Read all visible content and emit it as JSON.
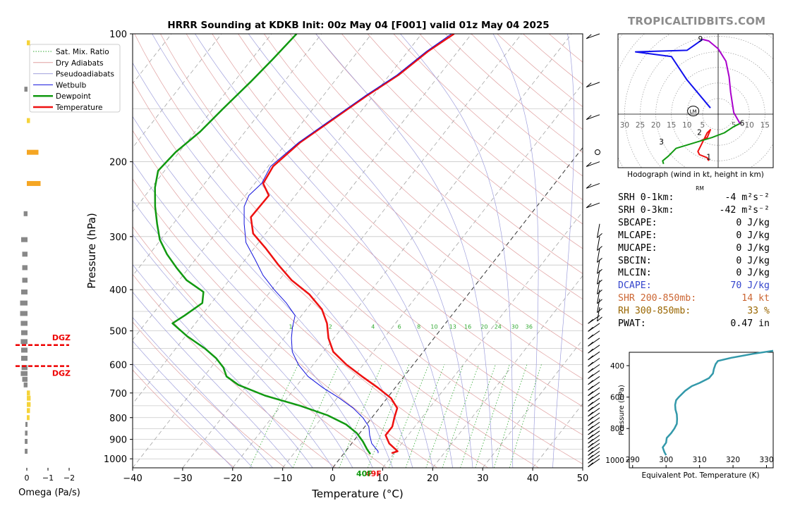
{
  "title": "HRRR Sounding at KDKB Init: 00z May 04 [F001] valid 01z May 04 2025",
  "brand": "TROPICALTIDBITS.COM",
  "skewt": {
    "xlabel": "Temperature (°C)",
    "ylabel": "Pressure (hPa)",
    "xticks": [
      -40,
      -30,
      -20,
      -10,
      0,
      10,
      20,
      30,
      40,
      50
    ],
    "yticks": [
      100,
      200,
      300,
      400,
      500,
      600,
      700,
      800,
      900,
      1000
    ],
    "xlim": [
      -40,
      50
    ],
    "ylim": [
      1050,
      100
    ],
    "mix_ratio_labels": [
      "1",
      "2",
      "4",
      "6",
      "8",
      "10",
      "13",
      "16",
      "20",
      "24",
      "30",
      "36"
    ],
    "legend": [
      "Sat. Mix. Ratio",
      "Dry Adiabats",
      "Pseudoadiabats",
      "Wetbulb",
      "Dewpoint",
      "Temperature"
    ],
    "surface_dewpoint_label": "40F",
    "surface_temp_label": "49F"
  },
  "omega": {
    "xlabel": "Omega (Pa/s)",
    "xticks": [
      "0",
      "−1",
      "−2"
    ],
    "dgz_label": "DGZ"
  },
  "hodograph": {
    "xlabel": "Hodograph (wind in kt, height in km)",
    "ring_labels": [
      "30",
      "25",
      "20",
      "15",
      "10",
      "5",
      "5",
      "10",
      "15"
    ],
    "height_labels": [
      "9",
      "6",
      "3",
      "2",
      "1"
    ],
    "lm_label": "LM",
    "rm_label": "RM"
  },
  "theta_e": {
    "xlabel": "Equivalent Pot. Temperature (K)",
    "ylabel": "Pressure (hPa)",
    "xticks": [
      "290",
      "300",
      "310",
      "320",
      "330"
    ],
    "yticks": [
      "400",
      "600",
      "800",
      "1000"
    ]
  },
  "stats": [
    {
      "label": "SRH 0-1km:",
      "value": "-4 m²s⁻²",
      "color": "#000000"
    },
    {
      "label": "SRH 0-3km:",
      "value": "-42 m²s⁻²",
      "color": "#000000"
    },
    {
      "label": "SBCAPE:",
      "value": "0 J/kg",
      "color": "#000000"
    },
    {
      "label": "MLCAPE:",
      "value": "0 J/kg",
      "color": "#000000"
    },
    {
      "label": "MUCAPE:",
      "value": "0 J/kg",
      "color": "#000000"
    },
    {
      "label": "SBCIN:",
      "value": "0 J/kg",
      "color": "#000000"
    },
    {
      "label": "MLCIN:",
      "value": "0 J/kg",
      "color": "#000000"
    },
    {
      "label": "DCAPE:",
      "value": "70 J/kg",
      "color": "#3344cc"
    },
    {
      "label": "SHR 200-850mb:",
      "value": "14 kt",
      "color": "#cc6633"
    },
    {
      "label": "RH 300-850mb:",
      "value": "33 %",
      "color": "#996600"
    },
    {
      "label": "PWAT:",
      "value": "0.47 in",
      "color": "#000000"
    }
  ],
  "chart_data": [
    {
      "type": "line",
      "title": "HRRR Sounding at KDKB Init: 00z May 04 [F001] valid 01z May 04 2025",
      "xlabel": "Temperature (°C)",
      "ylabel": "Pressure (hPa)",
      "xlim": [
        -40,
        50
      ],
      "ylim": [
        1050,
        100
      ],
      "y_scale": "log",
      "skew": "skew-T log-p",
      "grid": true,
      "legend_position": "top-left",
      "series": [
        {
          "name": "Temperature",
          "color": "#ee1111",
          "points": [
            [
              9.5,
              970
            ],
            [
              10.4,
              960
            ],
            [
              7.5,
              920
            ],
            [
              5.5,
              880
            ],
            [
              5.5,
              840
            ],
            [
              4.5,
              800
            ],
            [
              3.6,
              760
            ],
            [
              0.8,
              720
            ],
            [
              -3.5,
              680
            ],
            [
              -8.4,
              640
            ],
            [
              -13.4,
              600
            ],
            [
              -18,
              560
            ],
            [
              -21.1,
              520
            ],
            [
              -23.7,
              480
            ],
            [
              -26.9,
              445
            ],
            [
              -31.8,
              410
            ],
            [
              -37.5,
              380
            ],
            [
              -42.5,
              350
            ],
            [
              -47.6,
              320
            ],
            [
              -52.5,
              295
            ],
            [
              -55.5,
              270
            ],
            [
              -55.3,
              240
            ],
            [
              -58.3,
              225
            ],
            [
              -59,
              205
            ],
            [
              -57.3,
              180
            ],
            [
              -54.5,
              160
            ],
            [
              -51.3,
              140
            ],
            [
              -48.2,
              125
            ],
            [
              -46,
              110
            ],
            [
              -43.5,
              100
            ]
          ]
        },
        {
          "name": "Wetbulb",
          "color": "#1111dd",
          "points": [
            [
              6.8,
              970
            ],
            [
              6.5,
              960
            ],
            [
              4,
              920
            ],
            [
              2.3,
              880
            ],
            [
              0.8,
              840
            ],
            [
              -1.8,
              800
            ],
            [
              -5.2,
              760
            ],
            [
              -9.5,
              720
            ],
            [
              -14.5,
              680
            ],
            [
              -19.2,
              640
            ],
            [
              -23,
              600
            ],
            [
              -26.2,
              560
            ],
            [
              -28.5,
              520
            ],
            [
              -30,
              490
            ],
            [
              -31.3,
              460
            ],
            [
              -35,
              430
            ],
            [
              -39.5,
              400
            ],
            [
              -44,
              370
            ],
            [
              -48,
              340
            ],
            [
              -52.5,
              310
            ],
            [
              -55.8,
              280
            ],
            [
              -58.5,
              255
            ],
            [
              -59.3,
              240
            ],
            [
              -58.6,
              225
            ],
            [
              -59.5,
              205
            ],
            [
              -57.6,
              180
            ],
            [
              -54.8,
              160
            ],
            [
              -51.6,
              140
            ],
            [
              -48.5,
              125
            ],
            [
              -46.3,
              110
            ],
            [
              -44,
              100
            ]
          ]
        },
        {
          "name": "Dewpoint",
          "color": "#119911",
          "points": [
            [
              5.4,
              975
            ],
            [
              4,
              950
            ],
            [
              1.9,
              910
            ],
            [
              -0.6,
              870
            ],
            [
              -4.1,
              830
            ],
            [
              -9.2,
              790
            ],
            [
              -16.2,
              750
            ],
            [
              -24.8,
              710
            ],
            [
              -31.8,
              670
            ],
            [
              -35.5,
              640
            ],
            [
              -37.5,
              610
            ],
            [
              -40.4,
              580
            ],
            [
              -44.2,
              550
            ],
            [
              -49.6,
              515
            ],
            [
              -54.6,
              480
            ],
            [
              -53.4,
              460
            ],
            [
              -51.8,
              430
            ],
            [
              -53.3,
              405
            ],
            [
              -58.5,
              380
            ],
            [
              -62.5,
              355
            ],
            [
              -66.5,
              330
            ],
            [
              -70.2,
              305
            ],
            [
              -73.2,
              280
            ],
            [
              -76.3,
              255
            ],
            [
              -79.3,
              230
            ],
            [
              -81.3,
              210
            ],
            [
              -80.7,
              190
            ],
            [
              -79,
              170
            ],
            [
              -78,
              150
            ],
            [
              -76.7,
              130
            ],
            [
              -75.8,
              115
            ],
            [
              -75,
              100
            ]
          ]
        }
      ]
    },
    {
      "type": "bar",
      "title": "",
      "xlabel": "Omega (Pa/s)",
      "ylabel": "",
      "xlim": [
        0.2,
        -2.5
      ],
      "notes": "orange = upward motion, grey = downward; red dashed lines mark dendritic growth zone",
      "dgz_pressures": [
        540,
        605
      ],
      "series": [
        {
          "name": "omega",
          "color": "#888888",
          "points": [
            [
              -0.05,
              105
            ],
            [
              0.05,
              135
            ],
            [
              -0.05,
              160
            ],
            [
              -0.45,
              190
            ],
            [
              -0.55,
              225
            ],
            [
              0.08,
              265
            ],
            [
              0.2,
              305
            ],
            [
              0.15,
              330
            ],
            [
              0.15,
              355
            ],
            [
              0.15,
              380
            ],
            [
              0.2,
              405
            ],
            [
              0.25,
              430
            ],
            [
              0.25,
              455
            ],
            [
              0.22,
              480
            ],
            [
              0.2,
              505
            ],
            [
              0.22,
              530
            ],
            [
              0.2,
              555
            ],
            [
              0.2,
              580
            ],
            [
              0.18,
              610
            ],
            [
              0.22,
              630
            ],
            [
              0.15,
              650
            ],
            [
              0.08,
              670
            ],
            [
              -0.05,
              700
            ],
            [
              -0.08,
              720
            ],
            [
              -0.08,
              745
            ],
            [
              -0.05,
              770
            ],
            [
              -0.03,
              800
            ],
            [
              0,
              830
            ],
            [
              0.02,
              870
            ],
            [
              0.03,
              910
            ],
            [
              0.03,
              960
            ]
          ]
        }
      ]
    },
    {
      "type": "line",
      "title": "Hodograph",
      "xlabel": "Hodograph (wind in kt, height in km)",
      "ylabel": "",
      "xlim": [
        -31,
        17
      ],
      "ylim": [
        -16,
        25
      ],
      "series": [
        {
          "name": "0-3 km",
          "color": "#ee1111",
          "points": [
            [
              -3,
              -15
            ],
            [
              -3.5,
              -14
            ],
            [
              -6,
              -13
            ],
            [
              -6.5,
              -12
            ],
            [
              -5.5,
              -10
            ],
            [
              -4.5,
              -8
            ],
            [
              -3.5,
              -6
            ],
            [
              -2.5,
              -5
            ],
            [
              -3.5,
              -7.5
            ],
            [
              -5.5,
              -8.5
            ]
          ]
        },
        {
          "name": "3-6 km",
          "color": "#119911",
          "points": [
            [
              -17.5,
              -16
            ],
            [
              -17.8,
              -15
            ],
            [
              -16,
              -13.5
            ],
            [
              -13.5,
              -11
            ],
            [
              -7,
              -9
            ],
            [
              -2,
              -7.5
            ],
            [
              2,
              -6
            ],
            [
              5,
              -4
            ],
            [
              7,
              -3
            ]
          ]
        },
        {
          "name": "6-9 km",
          "color": "#aa00cc",
          "points": [
            [
              7,
              -3
            ],
            [
              5,
              0.5
            ],
            [
              4,
              7
            ],
            [
              3.5,
              12
            ],
            [
              2.5,
              17
            ],
            [
              0,
              21
            ],
            [
              -3,
              23.5
            ],
            [
              -5,
              24
            ]
          ]
        },
        {
          "name": "9+ km",
          "color": "#1111ee",
          "points": [
            [
              -5,
              24
            ],
            [
              -10,
              20.5
            ],
            [
              -26.5,
              20
            ],
            [
              -15,
              18.5
            ],
            [
              -10,
              11
            ],
            [
              -2.5,
              2
            ]
          ]
        }
      ],
      "storm_motion": {
        "LM": [
          -8,
          1
        ],
        "RM": [
          -7,
          -22
        ]
      }
    },
    {
      "type": "line",
      "title": "",
      "xlabel": "Equivalent Pot. Temperature (K)",
      "ylabel": "Pressure (hPa)",
      "xlim": [
        289,
        332
      ],
      "ylim": [
        1050,
        315
      ],
      "series": [
        {
          "name": "theta-e",
          "color": "#3399aa",
          "points": [
            [
              300,
              970
            ],
            [
              299.5,
              950
            ],
            [
              299,
              920
            ],
            [
              300,
              890
            ],
            [
              300.2,
              860
            ],
            [
              301.5,
              830
            ],
            [
              302.5,
              800
            ],
            [
              303.2,
              770
            ],
            [
              303.3,
              740
            ],
            [
              303.2,
              710
            ],
            [
              302.8,
              680
            ],
            [
              302.7,
              650
            ],
            [
              303,
              620
            ],
            [
              303.8,
              600
            ],
            [
              305.7,
              560
            ],
            [
              307.7,
              530
            ],
            [
              310,
              510
            ],
            [
              312.8,
              480
            ],
            [
              314,
              450
            ],
            [
              314.3,
              420
            ],
            [
              314.8,
              390
            ],
            [
              315.5,
              370
            ],
            [
              319.5,
              350
            ],
            [
              326,
              325
            ],
            [
              332,
              305
            ]
          ]
        }
      ]
    }
  ]
}
